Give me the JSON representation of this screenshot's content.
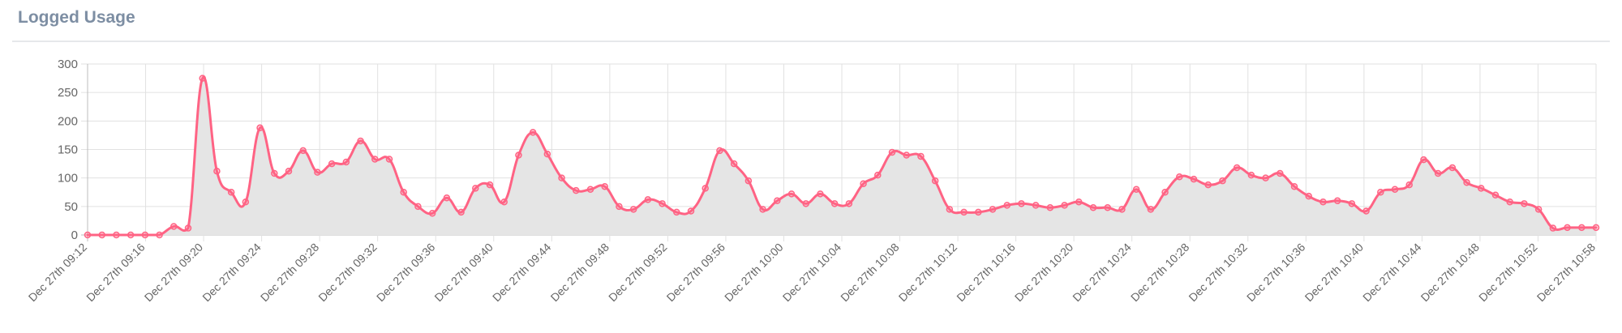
{
  "panel": {
    "title": "Logged Usage"
  },
  "colors": {
    "line": "#ff6384",
    "fill": "#e5e5e5",
    "grid": "#e1e1e1",
    "text": "#666666"
  },
  "chart_data": {
    "type": "line",
    "title": "",
    "xlabel": "",
    "ylabel": "",
    "ylim": [
      0,
      300
    ],
    "yticks": [
      0,
      50,
      100,
      150,
      200,
      250,
      300
    ],
    "grid": true,
    "legend": "none",
    "x_tick_labels": [
      "Dec 27th 09:12",
      "Dec 27th 09:16",
      "Dec 27th 09:20",
      "Dec 27th 09:24",
      "Dec 27th 09:28",
      "Dec 27th 09:32",
      "Dec 27th 09:36",
      "Dec 27th 09:40",
      "Dec 27th 09:44",
      "Dec 27th 09:48",
      "Dec 27th 09:52",
      "Dec 27th 09:56",
      "Dec 27th 10:00",
      "Dec 27th 10:04",
      "Dec 27th 10:08",
      "Dec 27th 10:12",
      "Dec 27th 10:16",
      "Dec 27th 10:20",
      "Dec 27th 10:24",
      "Dec 27th 10:28",
      "Dec 27th 10:32",
      "Dec 27th 10:36",
      "Dec 27th 10:40",
      "Dec 27th 10:44",
      "Dec 27th 10:48",
      "Dec 27th 10:52",
      "Dec 27th 10:58"
    ],
    "series": [
      {
        "values": [
          0,
          0,
          0,
          0,
          0,
          0,
          15,
          12,
          275,
          112,
          75,
          58,
          188,
          108,
          112,
          148,
          110,
          125,
          128,
          165,
          133,
          133,
          75,
          50,
          38,
          65,
          40,
          82,
          88,
          58,
          140,
          180,
          142,
          100,
          78,
          80,
          85,
          50,
          45,
          62,
          55,
          40,
          42,
          82,
          148,
          125,
          95,
          45,
          60,
          72,
          55,
          72,
          55,
          55,
          90,
          105,
          145,
          140,
          138,
          95,
          45,
          40,
          40,
          45,
          52,
          55,
          52,
          48,
          52,
          58,
          48,
          48,
          45,
          80,
          45,
          75,
          102,
          98,
          88,
          95,
          118,
          105,
          100,
          108,
          85,
          68,
          58,
          60,
          55,
          42,
          75,
          80,
          88,
          132,
          108,
          118,
          92,
          82,
          70,
          58,
          55,
          45,
          12,
          13,
          13,
          13
        ]
      }
    ]
  }
}
